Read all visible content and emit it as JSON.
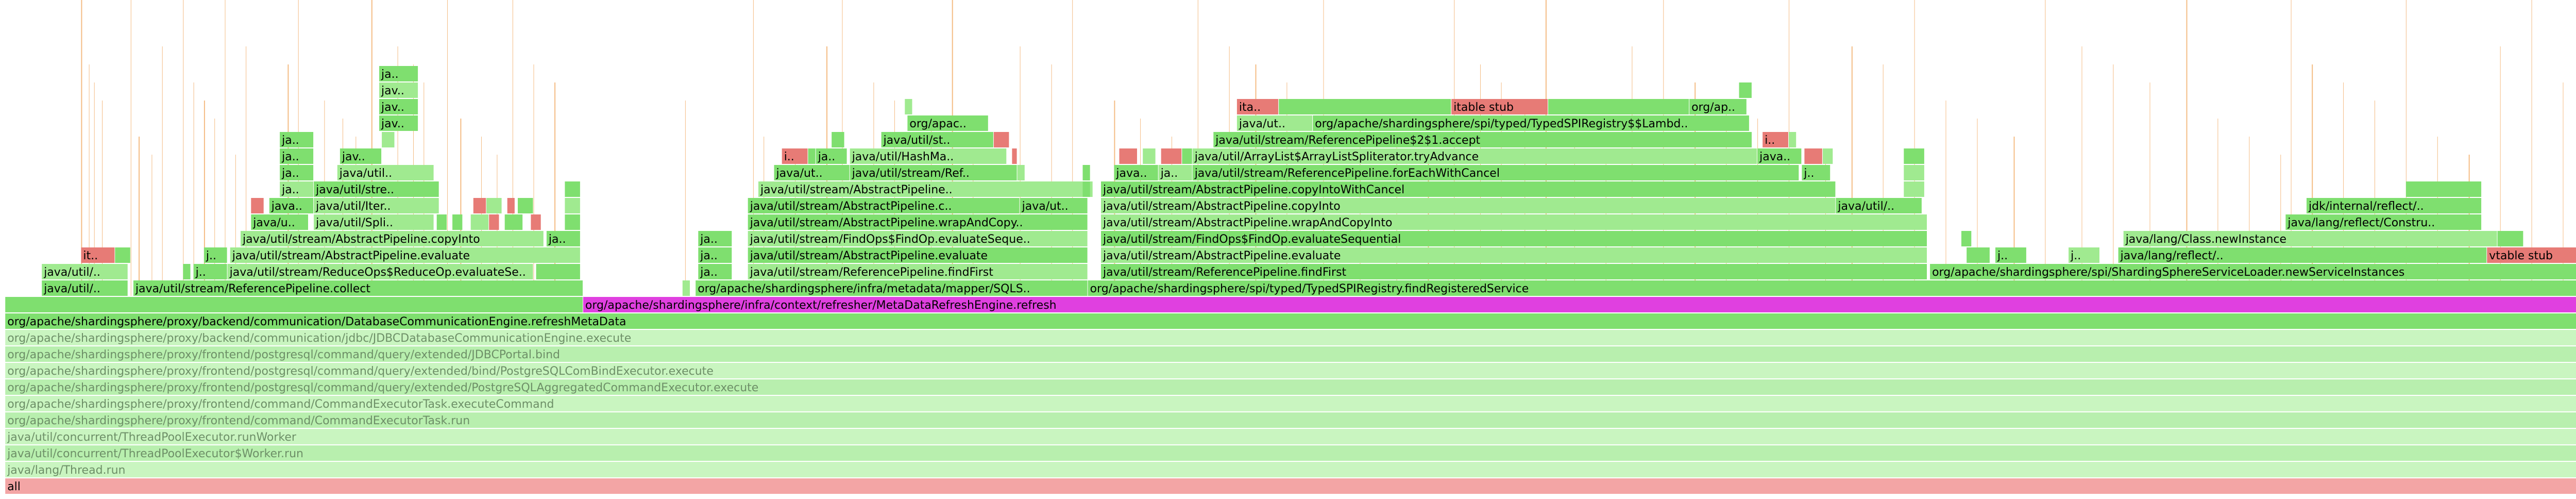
{
  "chart_data": {
    "type": "flamegraph",
    "x_unit": "fraction of total samples",
    "colors": {
      "java_green": "#7fdf6f",
      "java_green_light": "#a0ea90",
      "kernel_red": "#e77b76",
      "jit_orange": "#f0a050",
      "highlight_magenta": "#e040e0",
      "faded_green": "#c9f5c0",
      "faded_green_2": "#b8efae",
      "root_pink": "#f3a5a5",
      "text_dark": "#000000",
      "text_faded": "#6d8f67"
    },
    "frames": [
      {
        "name": "all",
        "depth": 0,
        "start": 0.002,
        "width": 0.996,
        "kind": "root"
      },
      {
        "name": "java/lang/Thread.run",
        "depth": 1,
        "start": 0.002,
        "width": 0.996,
        "kind": "faded"
      },
      {
        "name": "java/util/concurrent/ThreadPoolExecutor$Worker.run",
        "depth": 2,
        "start": 0.002,
        "width": 0.996,
        "kind": "faded"
      },
      {
        "name": "java/util/concurrent/ThreadPoolExecutor.runWorker",
        "depth": 3,
        "start": 0.002,
        "width": 0.996,
        "kind": "faded"
      },
      {
        "name": "org/apache/shardingsphere/proxy/frontend/command/CommandExecutorTask.run",
        "depth": 4,
        "start": 0.002,
        "width": 0.996,
        "kind": "faded"
      },
      {
        "name": "org/apache/shardingsphere/proxy/frontend/command/CommandExecutorTask.executeCommand",
        "depth": 5,
        "start": 0.002,
        "width": 0.996,
        "kind": "faded"
      },
      {
        "name": "org/apache/shardingsphere/proxy/frontend/postgresql/command/query/extended/PostgreSQLAggregatedCommandExecutor.execute",
        "depth": 6,
        "start": 0.002,
        "width": 0.996,
        "kind": "faded"
      },
      {
        "name": "org/apache/shardingsphere/proxy/frontend/postgresql/command/query/extended/bind/PostgreSQLComBindExecutor.execute",
        "depth": 7,
        "start": 0.002,
        "width": 0.996,
        "kind": "faded"
      },
      {
        "name": "org/apache/shardingsphere/proxy/frontend/postgresql/command/query/extended/JDBCPortal.bind",
        "depth": 8,
        "start": 0.002,
        "width": 0.996,
        "kind": "faded"
      },
      {
        "name": "org/apache/shardingsphere/proxy/backend/communication/jdbc/JDBCDatabaseCommunicationEngine.execute",
        "depth": 9,
        "start": 0.002,
        "width": 0.996,
        "kind": "faded"
      },
      {
        "name": "org/apache/shardingsphere/proxy/backend/communication/DatabaseCommunicationEngine.refreshMetaData",
        "depth": 10,
        "start": 0.002,
        "width": 0.996,
        "kind": "java"
      },
      {
        "name": "",
        "depth": 11,
        "start": 0.002,
        "width": 0.221,
        "kind": "java"
      },
      {
        "name": "org/apache/shardingsphere/infra/context/refresher/MetaDataRefreshEngine.refresh",
        "depth": 11,
        "start": 0.223,
        "width": 0.775,
        "kind": "magenta"
      },
      {
        "name": "java/util/..",
        "depth": 12,
        "start": 0.016,
        "width": 0.033,
        "kind": "java"
      },
      {
        "name": "java/util/stream/ReferencePipeline.collect",
        "depth": 12,
        "start": 0.051,
        "width": 0.172,
        "kind": "java"
      },
      {
        "name": "",
        "depth": 12,
        "start": 0.261,
        "width": 0.003,
        "kind": "java"
      },
      {
        "name": "org/apache/shardingsphere/infra/metadata/mapper/SQLS..",
        "depth": 12,
        "start": 0.266,
        "width": 0.15,
        "kind": "java"
      },
      {
        "name": "org/apache/shardingsphere/spi/typed/TypedSPIRegistry.findRegisteredService",
        "depth": 12,
        "start": 0.416,
        "width": 0.582,
        "kind": "java"
      },
      {
        "name": "java/util/..",
        "depth": 13,
        "start": 0.016,
        "width": 0.033,
        "kind": "java"
      },
      {
        "name": "",
        "depth": 13,
        "start": 0.07,
        "width": 0.003,
        "kind": "java"
      },
      {
        "name": "j..",
        "depth": 13,
        "start": 0.074,
        "width": 0.013,
        "kind": "java"
      },
      {
        "name": "java/util/stream/ReduceOps$ReduceOp.evaluateSe..",
        "depth": 13,
        "start": 0.087,
        "width": 0.117,
        "kind": "java"
      },
      {
        "name": "",
        "depth": 13,
        "start": 0.205,
        "width": 0.017,
        "kind": "java"
      },
      {
        "name": "ja..",
        "depth": 13,
        "start": 0.267,
        "width": 0.013,
        "kind": "java"
      },
      {
        "name": "java/util/stream/ReferencePipeline.findFirst",
        "depth": 13,
        "start": 0.286,
        "width": 0.13,
        "kind": "java"
      },
      {
        "name": "java/util/stream/ReferencePipeline.findFirst",
        "depth": 13,
        "start": 0.421,
        "width": 0.316,
        "kind": "java"
      },
      {
        "name": "org/apache/shardingsphere/spi/ShardingSphereServiceLoader.newServiceInstances",
        "depth": 13,
        "start": 0.738,
        "width": 0.26,
        "kind": "java"
      },
      {
        "name": "ita..",
        "depth": 14,
        "start": 0.031,
        "width": 0.013,
        "kind": "red"
      },
      {
        "name": "",
        "depth": 14,
        "start": 0.044,
        "width": 0.006,
        "kind": "java"
      },
      {
        "name": "j..",
        "depth": 14,
        "start": 0.078,
        "width": 0.009,
        "kind": "java"
      },
      {
        "name": "java/util/stream/AbstractPipeline.evaluate",
        "depth": 14,
        "start": 0.088,
        "width": 0.134,
        "kind": "java"
      },
      {
        "name": "ja..",
        "depth": 14,
        "start": 0.267,
        "width": 0.013,
        "kind": "java"
      },
      {
        "name": "java/util/stream/AbstractPipeline.evaluate",
        "depth": 14,
        "start": 0.286,
        "width": 0.13,
        "kind": "java"
      },
      {
        "name": "java/util/stream/AbstractPipeline.evaluate",
        "depth": 14,
        "start": 0.421,
        "width": 0.316,
        "kind": "java"
      },
      {
        "name": "",
        "depth": 14,
        "start": 0.752,
        "width": 0.009,
        "kind": "java"
      },
      {
        "name": "j..",
        "depth": 14,
        "start": 0.763,
        "width": 0.012,
        "kind": "java"
      },
      {
        "name": "j..",
        "depth": 14,
        "start": 0.791,
        "width": 0.012,
        "kind": "java"
      },
      {
        "name": "java/lang/reflect/..",
        "depth": 14,
        "start": 0.81,
        "width": 0.141,
        "kind": "java"
      },
      {
        "name": "vtable stub",
        "depth": 14,
        "start": 0.951,
        "width": 0.046,
        "kind": "red"
      },
      {
        "name": "java/util/stream/AbstractPipeline.copyInto",
        "depth": 15,
        "start": 0.092,
        "width": 0.116,
        "kind": "java"
      },
      {
        "name": "ja..",
        "depth": 15,
        "start": 0.209,
        "width": 0.013,
        "kind": "java"
      },
      {
        "name": "ja..",
        "depth": 15,
        "start": 0.267,
        "width": 0.013,
        "kind": "java"
      },
      {
        "name": "java/util/stream/FindOps$FindOp.evaluateSeque..",
        "depth": 15,
        "start": 0.286,
        "width": 0.13,
        "kind": "java"
      },
      {
        "name": "java/util/stream/FindOps$FindOp.evaluateSequential",
        "depth": 15,
        "start": 0.421,
        "width": 0.316,
        "kind": "java"
      },
      {
        "name": "",
        "depth": 15,
        "start": 0.75,
        "width": 0.004,
        "kind": "java"
      },
      {
        "name": "java/lang/Class.newInstance",
        "depth": 15,
        "start": 0.812,
        "width": 0.143,
        "kind": "java"
      },
      {
        "name": "",
        "depth": 15,
        "start": 0.955,
        "width": 0.01,
        "kind": "java"
      },
      {
        "name": "java/ut..",
        "depth": 16,
        "start": 0.096,
        "width": 0.022,
        "kind": "java"
      },
      {
        "name": "java/util/Spli..",
        "depth": 16,
        "start": 0.12,
        "width": 0.046,
        "kind": "java"
      },
      {
        "name": "",
        "depth": 16,
        "start": 0.167,
        "width": 0.004,
        "kind": "java"
      },
      {
        "name": "",
        "depth": 16,
        "start": 0.173,
        "width": 0.004,
        "kind": "java"
      },
      {
        "name": "ja..",
        "depth": 16,
        "start": 0.18,
        "width": 0.007,
        "kind": "java"
      },
      {
        "name": "",
        "depth": 16,
        "start": 0.187,
        "width": 0.004,
        "kind": "red"
      },
      {
        "name": "j..",
        "depth": 16,
        "start": 0.193,
        "width": 0.007,
        "kind": "java"
      },
      {
        "name": "",
        "depth": 16,
        "start": 0.203,
        "width": 0.004,
        "kind": "red"
      },
      {
        "name": "",
        "depth": 16,
        "start": 0.216,
        "width": 0.006,
        "kind": "java"
      },
      {
        "name": "java/util/stream/AbstractPipeline.wrapAndCopy..",
        "depth": 16,
        "start": 0.286,
        "width": 0.13,
        "kind": "java"
      },
      {
        "name": "java/util/stream/AbstractPipeline.wrapAndCopyInto",
        "depth": 16,
        "start": 0.421,
        "width": 0.316,
        "kind": "java"
      },
      {
        "name": "java/lang/reflect/Constru..",
        "depth": 16,
        "start": 0.874,
        "width": 0.075,
        "kind": "java"
      },
      {
        "name": "java..",
        "depth": 17,
        "start": 0.103,
        "width": 0.017,
        "kind": "java"
      },
      {
        "name": "java/util/Iter..",
        "depth": 17,
        "start": 0.12,
        "width": 0.048,
        "kind": "java"
      },
      {
        "name": "",
        "depth": 17,
        "start": 0.096,
        "width": 0.005,
        "kind": "red"
      },
      {
        "name": "",
        "depth": 17,
        "start": 0.181,
        "width": 0.005,
        "kind": "red"
      },
      {
        "name": "",
        "depth": 17,
        "start": 0.186,
        "width": 0.006,
        "kind": "java"
      },
      {
        "name": "",
        "depth": 17,
        "start": 0.194,
        "width": 0.003,
        "kind": "red"
      },
      {
        "name": "",
        "depth": 17,
        "start": 0.198,
        "width": 0.006,
        "kind": "java"
      },
      {
        "name": "",
        "depth": 17,
        "start": 0.216,
        "width": 0.006,
        "kind": "java"
      },
      {
        "name": "java/util/stream/AbstractPipeline.c..",
        "depth": 17,
        "start": 0.286,
        "width": 0.104,
        "kind": "java"
      },
      {
        "name": "java/ut..",
        "depth": 17,
        "start": 0.39,
        "width": 0.026,
        "kind": "java"
      },
      {
        "name": "java/util/stream/AbstractPipeline.copyInto",
        "depth": 17,
        "start": 0.421,
        "width": 0.281,
        "kind": "java"
      },
      {
        "name": "java/util/..",
        "depth": 17,
        "start": 0.702,
        "width": 0.033,
        "kind": "java"
      },
      {
        "name": "jdk/internal/reflect/..",
        "depth": 17,
        "start": 0.882,
        "width": 0.067,
        "kind": "java"
      },
      {
        "name": "jav..",
        "depth": 18,
        "start": 0.107,
        "width": 0.013,
        "kind": "java"
      },
      {
        "name": "java/util/stre..",
        "depth": 18,
        "start": 0.12,
        "width": 0.048,
        "kind": "java"
      },
      {
        "name": "",
        "depth": 18,
        "start": 0.216,
        "width": 0.006,
        "kind": "java"
      },
      {
        "name": "java/util/stream/AbstractPipeline..",
        "depth": 18,
        "start": 0.29,
        "width": 0.128,
        "kind": "java"
      },
      {
        "name": "",
        "depth": 18,
        "start": 0.414,
        "width": 0.003,
        "kind": "java"
      },
      {
        "name": "java/util/stream/AbstractPipeline.copyIntoWithCancel",
        "depth": 18,
        "start": 0.421,
        "width": 0.281,
        "kind": "java"
      },
      {
        "name": "",
        "depth": 18,
        "start": 0.728,
        "width": 0.008,
        "kind": "java"
      },
      {
        "name": "",
        "depth": 18,
        "start": 0.92,
        "width": 0.029,
        "kind": "java"
      },
      {
        "name": "jav..",
        "depth": 19,
        "start": 0.107,
        "width": 0.013,
        "kind": "java"
      },
      {
        "name": "java/util..",
        "depth": 19,
        "start": 0.129,
        "width": 0.037,
        "kind": "java"
      },
      {
        "name": "java/ut..",
        "depth": 19,
        "start": 0.296,
        "width": 0.029,
        "kind": "java"
      },
      {
        "name": "java/util/stream/Ref..",
        "depth": 19,
        "start": 0.325,
        "width": 0.064,
        "kind": "java"
      },
      {
        "name": "",
        "depth": 19,
        "start": 0.389,
        "width": 0.003,
        "kind": "java"
      },
      {
        "name": "",
        "depth": 19,
        "start": 0.414,
        "width": 0.003,
        "kind": "java"
      },
      {
        "name": "java..",
        "depth": 19,
        "start": 0.426,
        "width": 0.017,
        "kind": "java"
      },
      {
        "name": "ja..",
        "depth": 19,
        "start": 0.443,
        "width": 0.013,
        "kind": "java"
      },
      {
        "name": "java/util/stream/ReferencePipeline.forEachWithCancel",
        "depth": 19,
        "start": 0.456,
        "width": 0.232,
        "kind": "java"
      },
      {
        "name": "j..",
        "depth": 19,
        "start": 0.689,
        "width": 0.011,
        "kind": "java"
      },
      {
        "name": "j..",
        "depth": 19,
        "start": 0.728,
        "width": 0.008,
        "kind": "java"
      },
      {
        "name": "jav..",
        "depth": 20,
        "start": 0.107,
        "width": 0.013,
        "kind": "java"
      },
      {
        "name": "jav..",
        "depth": 20,
        "start": 0.13,
        "width": 0.016,
        "kind": "java"
      },
      {
        "name": "i..",
        "depth": 20,
        "start": 0.299,
        "width": 0.01,
        "kind": "red"
      },
      {
        "name": "",
        "depth": 20,
        "start": 0.309,
        "width": 0.003,
        "kind": "java"
      },
      {
        "name": "ja..",
        "depth": 20,
        "start": 0.312,
        "width": 0.012,
        "kind": "java"
      },
      {
        "name": "java/util/HashMa..",
        "depth": 20,
        "start": 0.325,
        "width": 0.06,
        "kind": "java"
      },
      {
        "name": "",
        "depth": 20,
        "start": 0.387,
        "width": 0.002,
        "kind": "red"
      },
      {
        "name": "",
        "depth": 20,
        "start": 0.428,
        "width": 0.007,
        "kind": "red"
      },
      {
        "name": "",
        "depth": 20,
        "start": 0.437,
        "width": 0.005,
        "kind": "java"
      },
      {
        "name": "",
        "depth": 20,
        "start": 0.444,
        "width": 0.008,
        "kind": "red"
      },
      {
        "name": "",
        "depth": 20,
        "start": 0.452,
        "width": 0.004,
        "kind": "java"
      },
      {
        "name": "java/util/ArrayList$ArrayListSpliterator.tryAdvance",
        "depth": 20,
        "start": 0.456,
        "width": 0.216,
        "kind": "java"
      },
      {
        "name": "java..",
        "depth": 20,
        "start": 0.672,
        "width": 0.017,
        "kind": "java"
      },
      {
        "name": "",
        "depth": 20,
        "start": 0.69,
        "width": 0.007,
        "kind": "red"
      },
      {
        "name": "",
        "depth": 20,
        "start": 0.697,
        "width": 0.004,
        "kind": "java"
      },
      {
        "name": "j..",
        "depth": 20,
        "start": 0.728,
        "width": 0.008,
        "kind": "java"
      },
      {
        "name": "jav..",
        "depth": 21,
        "start": 0.107,
        "width": 0.013,
        "kind": "java"
      },
      {
        "name": "",
        "depth": 21,
        "start": 0.146,
        "width": 0.005,
        "kind": "java"
      },
      {
        "name": "",
        "depth": 21,
        "start": 0.318,
        "width": 0.005,
        "kind": "java"
      },
      {
        "name": "java/util/st..",
        "depth": 21,
        "start": 0.337,
        "width": 0.043,
        "kind": "java"
      },
      {
        "name": "",
        "depth": 21,
        "start": 0.38,
        "width": 0.006,
        "kind": "red"
      },
      {
        "name": "java/util/stream/ReferencePipeline$2$1.accept",
        "depth": 21,
        "start": 0.464,
        "width": 0.206,
        "kind": "java"
      },
      {
        "name": "i..",
        "depth": 21,
        "start": 0.674,
        "width": 0.01,
        "kind": "red"
      },
      {
        "name": "",
        "depth": 21,
        "start": 0.684,
        "width": 0.003,
        "kind": "java"
      },
      {
        "name": "jav..",
        "depth": 22,
        "start": 0.145,
        "width": 0.015,
        "kind": "java"
      },
      {
        "name": "org/apac..",
        "depth": 22,
        "start": 0.347,
        "width": 0.031,
        "kind": "java"
      },
      {
        "name": "java/ut..",
        "depth": 22,
        "start": 0.473,
        "width": 0.029,
        "kind": "java"
      },
      {
        "name": "org/apache/shardingsphere/spi/typed/TypedSPIRegistry$$Lambd..",
        "depth": 22,
        "start": 0.502,
        "width": 0.167,
        "kind": "java"
      },
      {
        "name": "jav..",
        "depth": 23,
        "start": 0.145,
        "width": 0.015,
        "kind": "java"
      },
      {
        "name": "",
        "depth": 23,
        "start": 0.346,
        "width": 0.003,
        "kind": "java"
      },
      {
        "name": "ita..",
        "depth": 23,
        "start": 0.473,
        "width": 0.016,
        "kind": "red"
      },
      {
        "name": "",
        "depth": 23,
        "start": 0.489,
        "width": 0.066,
        "kind": "java"
      },
      {
        "name": "itable stub",
        "depth": 23,
        "start": 0.555,
        "width": 0.037,
        "kind": "red"
      },
      {
        "name": "",
        "depth": 23,
        "start": 0.592,
        "width": 0.054,
        "kind": "java"
      },
      {
        "name": "org/ap..",
        "depth": 23,
        "start": 0.646,
        "width": 0.022,
        "kind": "java"
      },
      {
        "name": "jav..",
        "depth": 24,
        "start": 0.145,
        "width": 0.015,
        "kind": "java"
      },
      {
        "name": "",
        "depth": 24,
        "start": 0.665,
        "width": 0.005,
        "kind": "java"
      },
      {
        "name": "ja..",
        "depth": 25,
        "start": 0.145,
        "width": 0.015,
        "kind": "java"
      }
    ]
  }
}
